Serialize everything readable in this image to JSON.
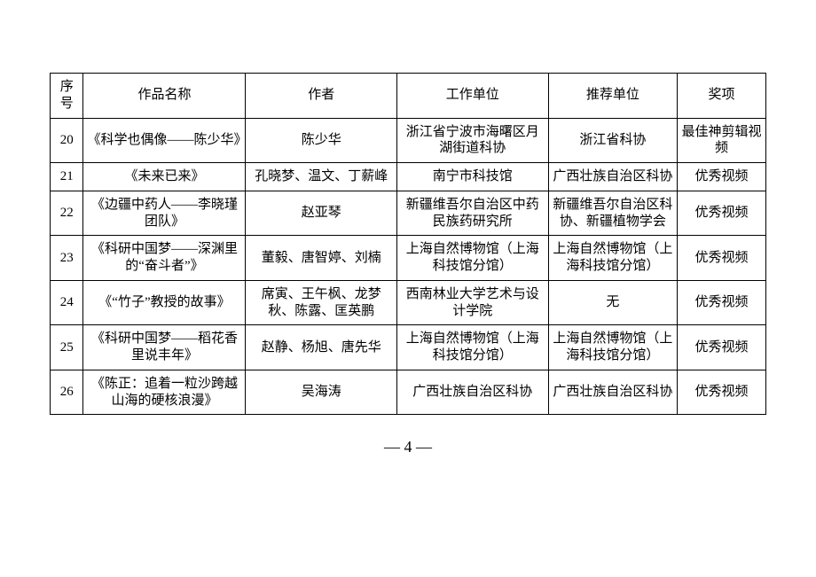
{
  "table": {
    "columns": [
      "序号",
      "作品名称",
      "作者",
      "工作单位",
      "推荐单位",
      "奖项"
    ],
    "rows": [
      [
        "20",
        "《科学也偶像——陈少华》",
        "陈少华",
        "浙江省宁波市海曙区月湖街道科协",
        "浙江省科协",
        "最佳神剪辑视频"
      ],
      [
        "21",
        "《未来已来》",
        "孔晓梦、温文、丁薪峰",
        "南宁市科技馆",
        "广西壮族自治区科协",
        "优秀视频"
      ],
      [
        "22",
        "《边疆中药人——李晓瑾团队》",
        "赵亚琴",
        "新疆维吾尔自治区中药民族药研究所",
        "新疆维吾尔自治区科协、新疆植物学会",
        "优秀视频"
      ],
      [
        "23",
        "《科研中国梦——深渊里的“奋斗者”》",
        "董毅、唐智婷、刘楠",
        "上海自然博物馆（上海科技馆分馆）",
        "上海自然博物馆（上海科技馆分馆）",
        "优秀视频"
      ],
      [
        "24",
        "《“竹子”教授的故事》",
        "席寅、王午枫、龙梦秋、陈露、匡英鹏",
        "西南林业大学艺术与设计学院",
        "无",
        "优秀视频"
      ],
      [
        "25",
        "《科研中国梦——稻花香里说丰年》",
        "赵静、杨旭、唐先华",
        "上海自然博物馆（上海科技馆分馆）",
        "上海自然博物馆（上海科技馆分馆）",
        "优秀视频"
      ],
      [
        "26",
        "《陈正：追着一粒沙跨越山海的硬核浪漫》",
        "吴海涛",
        "广西壮族自治区科协",
        "广西壮族自治区科协",
        "优秀视频"
      ]
    ]
  },
  "page_number": "— 4 —"
}
